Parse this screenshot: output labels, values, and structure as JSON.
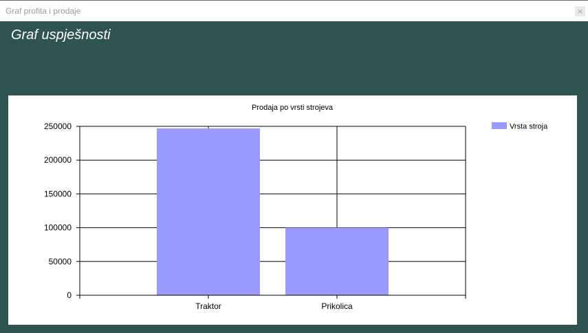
{
  "window": {
    "title": "Graf profita i prodaje",
    "close_label": "×"
  },
  "page": {
    "heading": "Graf uspješnosti"
  },
  "colors": {
    "background": "#2f5351",
    "bar": "#9a9aff",
    "panel": "#ffffff"
  },
  "chart_data": {
    "type": "bar",
    "title": "Prodaja po vrsti strojeva",
    "xlabel": "",
    "ylabel": "",
    "categories": [
      "Traktor",
      "Prikolica"
    ],
    "series": [
      {
        "name": "Vrsta stroja",
        "values": [
          247000,
          100000
        ]
      }
    ],
    "ylim": [
      0,
      250000
    ],
    "yticks": [
      "0",
      "50000",
      "100000",
      "150000",
      "200000",
      "250000"
    ],
    "ytick_values": [
      0,
      50000,
      100000,
      150000,
      200000,
      250000
    ],
    "grid": true,
    "legend_position": "top-right"
  }
}
